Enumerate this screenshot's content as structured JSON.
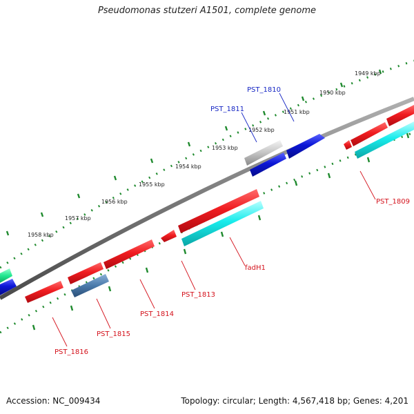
{
  "title": "Pseudomonas stutzeri A1501, complete genome",
  "footer": {
    "accession": "Accession: NC_009434",
    "stats": "Topology: circular; Length: 4,567,418 bp; Genes: 4,201"
  },
  "ruler_ticks": [
    "1949 kbp",
    "1950 kbp",
    "1951 kbp",
    "1952 kbp",
    "1953 kbp",
    "1954 kbp",
    "1955 kbp",
    "1956 kbp",
    "1957 kbp",
    "1958 kbp"
  ],
  "gene_labels": {
    "outer": [
      "PST_1810",
      "PST_1811"
    ],
    "inner": [
      "PST_1809",
      "fadH1",
      "PST_1813",
      "PST_1814",
      "PST_1815",
      "PST_1816"
    ]
  },
  "colors": {
    "red_gene": "#e8141a",
    "blue_gene": "#0a14c8",
    "cyan_gene": "#17e6e6",
    "grey_gene": "#b9b9b9",
    "steel_gene": "#4878a8",
    "green_gene": "#1ee88a",
    "backbone": "#7a7a7a",
    "tick_green": "#1f8a2e",
    "label_red": "#d4111b",
    "label_blue": "#1626c4"
  }
}
